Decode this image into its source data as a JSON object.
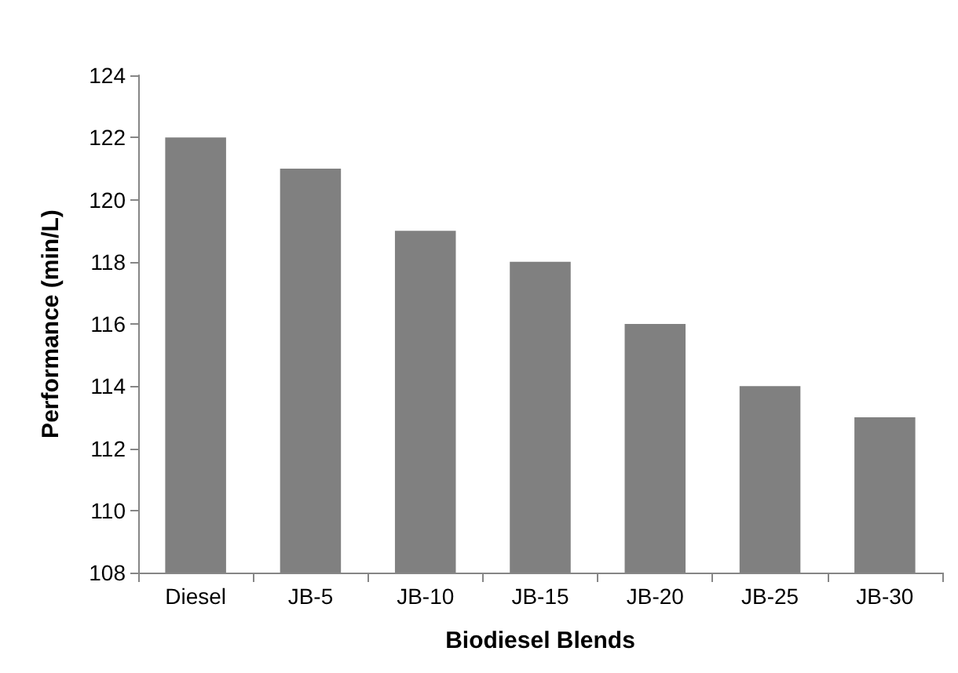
{
  "chart_data": {
    "type": "bar",
    "xlabel": "Biodiesel Blends",
    "ylabel": "Performance (min/L)",
    "categories": [
      "Diesel",
      "JB-5",
      "JB-10",
      "JB-15",
      "JB-20",
      "JB-25",
      "JB-30"
    ],
    "values": [
      122,
      121,
      119,
      118,
      116,
      114,
      113
    ],
    "color": "#808080",
    "ylim": [
      108,
      124
    ],
    "yticks": [
      108,
      110,
      112,
      114,
      116,
      118,
      120,
      122,
      124
    ],
    "grid": false
  }
}
